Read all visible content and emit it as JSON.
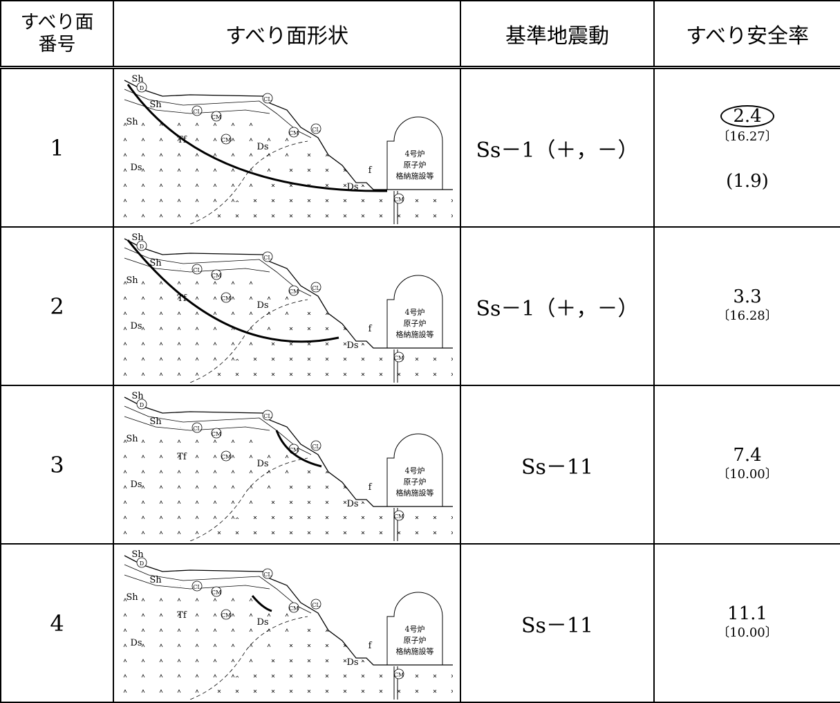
{
  "header": {
    "columns": [
      [
        "すべり面",
        "番号"
      ],
      "すべり面形状",
      "基準地震動",
      "すべり安全率"
    ]
  },
  "diagram": {
    "labels": [
      "Sh",
      "D",
      "Sh",
      "Sh",
      "CL",
      "CM",
      "CL",
      "CM",
      "CM",
      "CL",
      "Tf",
      "Ds",
      "Ds",
      "f",
      "Ds",
      "CM",
      "4号炉",
      "原子炉",
      "格納施設等"
    ]
  },
  "rows": [
    {
      "number": "1",
      "ground_motion": "Ss－1（＋，－）",
      "safety_factor": "2.4",
      "time": "〔16.27〕",
      "note": "(1.9)"
    },
    {
      "number": "2",
      "ground_motion": "Ss－1（＋，－）",
      "safety_factor": "3.3",
      "time": "〔16.28〕"
    },
    {
      "number": "3",
      "ground_motion": "Ss－11",
      "safety_factor": "7.4",
      "time": "〔10.00〕"
    },
    {
      "number": "4",
      "ground_motion": "Ss－11",
      "safety_factor": "11.1",
      "time": "〔10.00〕"
    }
  ]
}
